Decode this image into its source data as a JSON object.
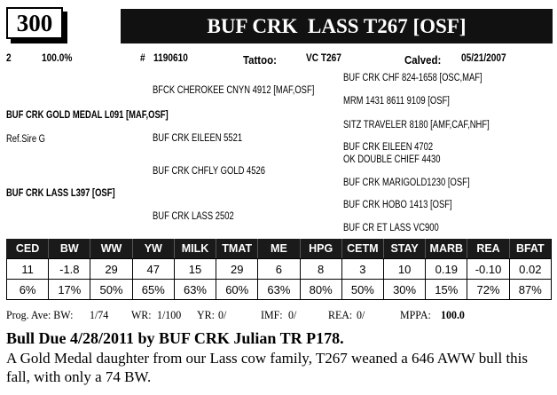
{
  "header": {
    "lot_number": "300",
    "animal_name": "BUF CRK  LASS T267 [OSF]"
  },
  "info": {
    "count": "2",
    "percent": "100.0%",
    "reg_label": "#",
    "reg_number": "1190610",
    "tattoo_label": "Tattoo:",
    "tattoo": "VC T267",
    "calved_label": "Calved:",
    "calved": "05/21/2007"
  },
  "pedigree": {
    "ref_sire": "Ref.Sire G",
    "sire": "BUF CRK GOLD MEDAL L091 [MAF,OSF]",
    "dam": "BUF CRK LASS L397 [OSF]",
    "ss": "BFCK CHEROKEE CNYN 4912 [MAF,OSF]",
    "sd": "BUF CRK EILEEN 5521",
    "ds": "BUF CRK CHFLY GOLD 4526",
    "dd": "BUF CRK LASS 2502",
    "sss": "BUF CRK CHF 824-1658 [OSC,MAF]",
    "ssd": "MRM 1431 8611 9109 [OSF]",
    "sds": "SITZ TRAVELER 8180 [AMF,CAF,NHF]",
    "sdd": "BUF CRK EILEEN 4702",
    "dss": "OK DOUBLE CHIEF 4430",
    "dsd": "BUF CRK MARIGOLD1230 [OSF]",
    "dds": "BUF CRK HOBO 1413 [OSF]",
    "ddd": "BUF CR ET LASS VC900"
  },
  "epd": {
    "headers": [
      "CED",
      "BW",
      "WW",
      "YW",
      "MILK",
      "TMAT",
      "ME",
      "HPG",
      "CETM",
      "STAY",
      "MARB",
      "REA",
      "BFAT"
    ],
    "values": [
      "11",
      "-1.8",
      "29",
      "47",
      "15",
      "29",
      "6",
      "8",
      "3",
      "10",
      "0.19",
      "-0.10",
      "0.02"
    ],
    "percentiles": [
      "6%",
      "17%",
      "50%",
      "65%",
      "63%",
      "60%",
      "63%",
      "80%",
      "50%",
      "30%",
      "15%",
      "72%",
      "87%"
    ]
  },
  "progeny": {
    "bw_label": "Prog. Ave: BW:",
    "bw": "1/74",
    "wr_label": "WR:",
    "wr": "1/100",
    "yr_label": "YR:",
    "yr": "0/",
    "imf_label": "IMF:",
    "imf": "0/",
    "rea_label": "REA:",
    "rea": "0/",
    "mppa_label": "MPPA:",
    "mppa": "100.0"
  },
  "comments": {
    "headline": "Bull Due 4/28/2011 by BUF CRK Julian TR P178.",
    "body": "A Gold Medal daughter from our Lass cow family, T267 weaned a 646 AWW bull this fall, with only a 74 BW."
  }
}
